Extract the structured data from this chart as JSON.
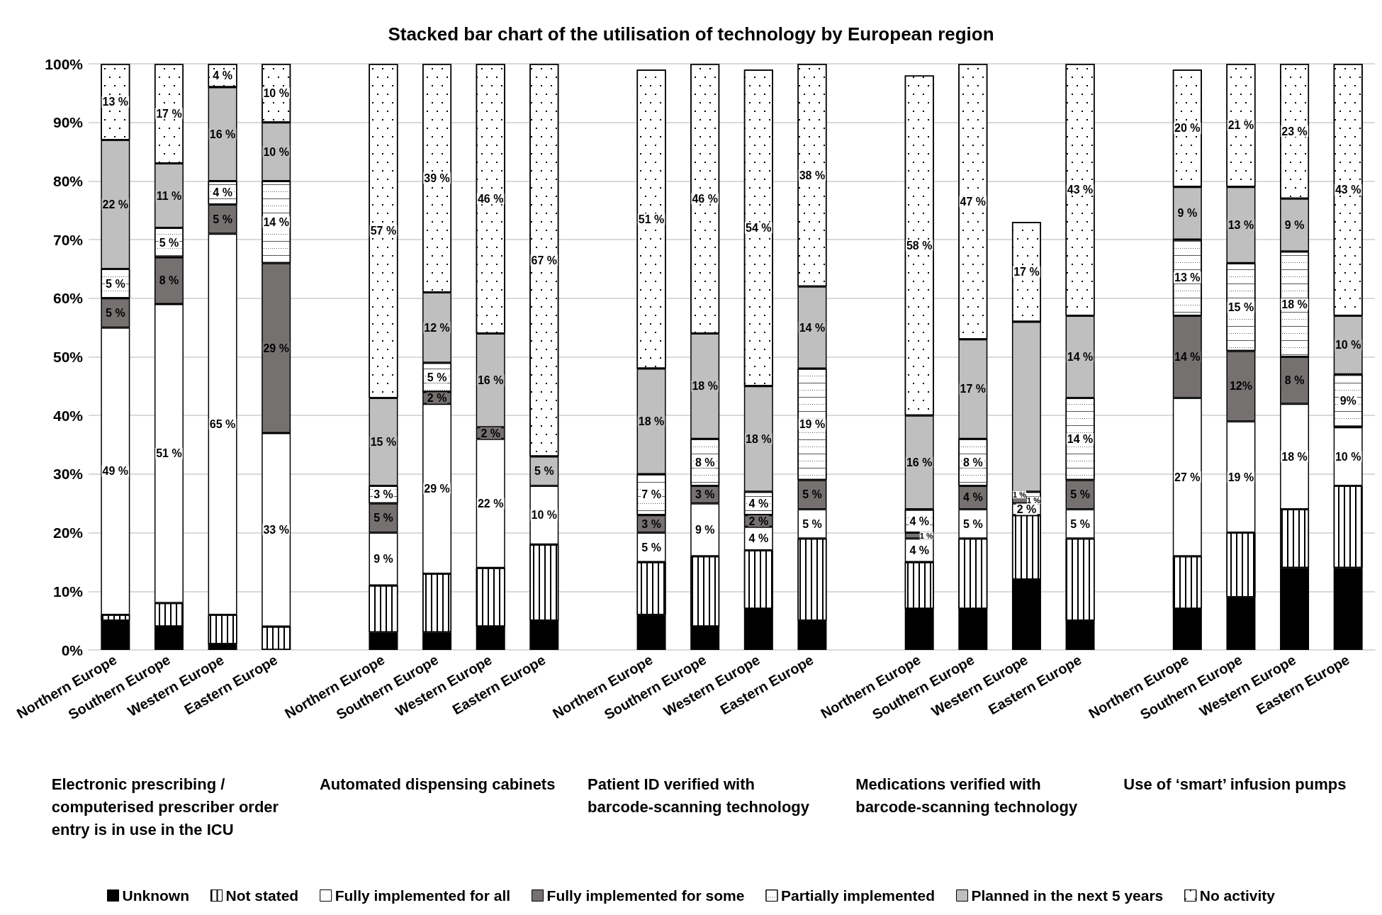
{
  "chart_data": {
    "type": "bar",
    "stacked": true,
    "title": "Stacked bar chart of the utilisation of technology by European region",
    "categories": [
      "Northern Europe",
      "Southern Europe",
      "Western Europe",
      "Eastern Europe",
      null,
      "Northern Europe",
      "Southern Europe",
      "Western Europe",
      "Eastern Europe",
      null,
      "Northern Europe",
      "Southern Europe",
      "Western Europe",
      "Eastern Europe",
      null,
      "Northern Europe",
      "Southern Europe",
      "Western Europe",
      "Eastern Europe",
      null,
      "Northern Europe",
      "Southern Europe",
      "Western Europe",
      "Eastern Europe"
    ],
    "series": [
      {
        "name": "Unknown",
        "color": "#000000",
        "values": [
          5,
          4,
          1,
          null,
          null,
          3,
          3,
          4,
          5,
          null,
          6,
          4,
          7,
          5,
          null,
          7,
          7,
          12,
          5,
          null,
          7,
          9,
          14,
          14
        ]
      },
      {
        "name": "Not stated",
        "color": "#ffffff",
        "values": [
          1,
          4,
          5,
          4,
          null,
          8,
          10,
          10,
          13,
          null,
          9,
          12,
          10,
          14,
          null,
          8,
          12,
          11,
          14,
          null,
          9,
          11,
          10,
          14
        ]
      },
      {
        "name": "Fully implemented for all",
        "color": "#ffffff",
        "values": [
          49,
          51,
          65,
          33,
          null,
          9,
          29,
          22,
          10,
          null,
          5,
          9,
          4,
          5,
          null,
          4,
          5,
          2,
          5,
          null,
          27,
          19,
          18,
          10
        ],
        "value_labels": [
          "49 %",
          "51 %",
          "65 %",
          "33 %",
          null,
          "9 %",
          "29 %",
          "22 %",
          "10 %",
          null,
          "5 %",
          "9 %",
          "4 %",
          "5 %",
          null,
          "4 %",
          "5 %",
          "2 %",
          "5 %",
          null,
          "27 %",
          "19 %",
          "18 %",
          "10 %"
        ]
      },
      {
        "name": "Fully implemented for some",
        "color": "#767171",
        "values": [
          5,
          8,
          5,
          29,
          null,
          5,
          2,
          2,
          null,
          null,
          3,
          3,
          2,
          5,
          null,
          1,
          4,
          1,
          5,
          null,
          14,
          12,
          8,
          null
        ],
        "value_labels": [
          "5 %",
          "8 %",
          "5 %",
          "29 %",
          null,
          "5 %",
          "2 %",
          "2 %",
          null,
          null,
          "3 %",
          "3 %",
          "2 %",
          "5 %",
          null,
          "1 %",
          "4 %",
          "1 %",
          "5 %",
          null,
          "14 %",
          "12%",
          "8 %",
          null
        ]
      },
      {
        "name": "Partially implemented",
        "color": "#ffffff",
        "values": [
          5,
          5,
          4,
          14,
          null,
          3,
          5,
          null,
          null,
          null,
          7,
          8,
          4,
          19,
          null,
          4,
          8,
          1,
          14,
          null,
          13,
          15,
          18,
          9
        ],
        "value_labels": [
          "5 %",
          "5 %",
          "4 %",
          "14 %",
          null,
          "3 %",
          "5 %",
          null,
          null,
          null,
          "7 %",
          "8 %",
          "4 %",
          "19 %",
          null,
          "4 %",
          "8 %",
          "1 %",
          "14 %",
          null,
          "13 %",
          "15 %",
          "18 %",
          "9%"
        ]
      },
      {
        "name": "Planned in the next 5 years",
        "color": "#bfbfbf",
        "values": [
          22,
          11,
          16,
          10,
          null,
          15,
          12,
          16,
          5,
          null,
          18,
          18,
          18,
          14,
          null,
          16,
          17,
          29,
          14,
          null,
          9,
          13,
          9,
          10
        ],
        "value_labels": [
          "22 %",
          "11 %",
          "16 %",
          "10 %",
          null,
          "15 %",
          "12 %",
          "16 %",
          "5 %",
          null,
          "18 %",
          "18 %",
          "18 %",
          "14 %",
          null,
          "16 %",
          "17 %",
          null,
          "14 %",
          null,
          "9 %",
          "13 %",
          "9 %",
          "10 %"
        ]
      },
      {
        "name": "No activity",
        "color": "#ffffff",
        "values": [
          13,
          17,
          4,
          10,
          null,
          57,
          39,
          46,
          67,
          null,
          51,
          46,
          54,
          38,
          null,
          58,
          47,
          17,
          43,
          null,
          20,
          21,
          23,
          43
        ],
        "value_labels": [
          "13 %",
          "17 %",
          "4 %",
          "10 %",
          null,
          "57 %",
          "39 %",
          "46 %",
          "67 %",
          null,
          "51 %",
          "46 %",
          "54 %",
          "38 %",
          null,
          "58 %",
          "47 %",
          "17 %",
          "43 %",
          null,
          "20 %",
          "21 %",
          "23 %",
          "43 %"
        ]
      }
    ],
    "ylim": [
      0,
      100
    ],
    "yticks": [
      {
        "value": 0,
        "label": "0%"
      },
      {
        "value": 10,
        "label": "10%"
      },
      {
        "value": 20,
        "label": "20%"
      },
      {
        "value": 30,
        "label": "30%"
      },
      {
        "value": 40,
        "label": "40%"
      },
      {
        "value": 50,
        "label": "50%"
      },
      {
        "value": 60,
        "label": "60%"
      },
      {
        "value": 70,
        "label": "70%"
      },
      {
        "value": 80,
        "label": "80%"
      },
      {
        "value": 90,
        "label": "90%"
      },
      {
        "value": 100,
        "label": "100%"
      }
    ],
    "grid": "y",
    "legend": "bottom",
    "annotations": [
      "Electronic prescribing / computerised prescriber order entry is in use in the ICU",
      "Automated dispensing cabinets",
      "Patient ID verified with barcode-scanning technology",
      "Medications verified with barcode-scanning technology",
      "Use of ‘smart’ infusion pumps"
    ]
  }
}
